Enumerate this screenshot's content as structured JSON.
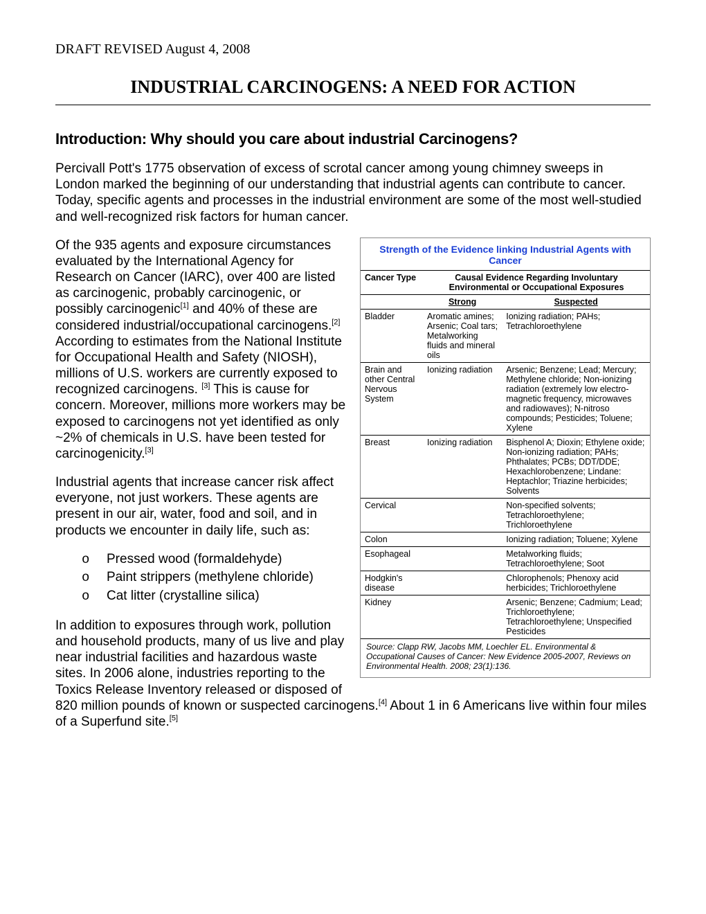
{
  "header": {
    "draft_line": "DRAFT REVISED August 4, 2008",
    "main_title": "INDUSTRIAL CARCINOGENS: A NEED FOR ACTION"
  },
  "section": {
    "heading": "Introduction: Why should you care about industrial Carcinogens?"
  },
  "paragraphs": {
    "intro": "Percivall Pott's 1775 observation of excess of scrotal cancer among young chimney sweeps in London marked the beginning of our understanding that industrial agents can contribute to cancer. Today, specific agents and processes in the industrial environment are some of the most well-studied and well-recognized risk factors for human cancer.",
    "p2a": "Of the 935 agents and exposure circumstances evaluated by the International Agency for Research on Cancer (IARC), over 400 are listed as carcinogenic, probably carcinogenic, or possibly carcinogenic",
    "p2a_ref": "[1]",
    "p2b": " and 40% of these are considered industrial/occupational carcinogens.",
    "p2b_ref": "[2]",
    "p2c": " According to estimates from the National Institute for Occupational Health and Safety (NIOSH), millions of U.S. workers are currently exposed to recognized carcinogens. ",
    "p2c_ref": "[3]",
    "p2d": "  This is cause for concern.  Moreover, millions more workers may be exposed to carcinogens not yet identified as only ~2% of chemicals in U.S. have been tested for carcinogenicity.",
    "p2d_ref": "[3]",
    "p3": "Industrial agents that increase cancer risk affect everyone, not just workers. These agents are present in our air, water, food and soil, and in products we encounter in daily life, such as:",
    "p4a": "In addition to exposures through work, pollution and household products, many of us live and play near industrial facilities and hazardous waste sites. In 2006 alone, industries reporting to the Toxics Release Inventory released or disposed of 820 million pounds of known or suspected carcinogens.",
    "p4a_ref": "[4]",
    "p4b": " About 1 in 6 Americans live within four miles of a Superfund site.",
    "p4b_ref": "[5]"
  },
  "bullets": [
    "Pressed wood (formaldehyde)",
    "Paint strippers (methylene chloride)",
    "Cat litter (crystalline silica)"
  ],
  "sidebar": {
    "title": "Strength of the Evidence linking Industrial Agents with Cancer",
    "col_cancer_type": "Cancer Type",
    "col_causal": "Causal Evidence Regarding Involuntary Environmental or Occupational Exposures",
    "col_strong": "Strong",
    "col_suspected": "Suspected",
    "rows": [
      {
        "type": "Bladder",
        "strong": "Aromatic amines; Arsenic; Coal tars; Metalworking fluids and mineral oils",
        "suspected": "Ionizing radiation; PAHs; Tetrachloroethylene"
      },
      {
        "type": "Brain and other Central Nervous System",
        "strong": "Ionizing radiation",
        "suspected": "Arsenic; Benzene; Lead; Mercury; Methylene chloride; Non-ionizing radiation (extremely low electro-magnetic frequency, microwaves and radiowaves); N-nitroso compounds; Pesticides; Toluene; Xylene"
      },
      {
        "type": "Breast",
        "strong": "Ionizing radiation",
        "suspected": "Bisphenol A; Dioxin; Ethylene oxide; Non-ionizing radiation; PAHs; Phthalates; PCBs; DDT/DDE; Hexachlorobenzene; Lindane: Heptachlor; Triazine herbicides; Solvents"
      },
      {
        "type": "Cervical",
        "strong": "",
        "suspected": "Non-specified solvents; Tetrachloroethylene; Trichloroethylene"
      },
      {
        "type": "Colon",
        "strong": "",
        "suspected": "Ionizing radiation; Toluene; Xylene"
      },
      {
        "type": "Esophageal",
        "strong": "",
        "suspected": "Metalworking fluids; Tetrachloroethylene; Soot"
      },
      {
        "type": "Hodgkin's disease",
        "strong": "",
        "suspected": "Chlorophenols; Phenoxy acid herbicides; Trichloroethylene"
      },
      {
        "type": "Kidney",
        "strong": "",
        "suspected": "Arsenic; Benzene; Cadmium; Lead; Trichloroethylene; Tetrachloroethylene; Unspecified Pesticides"
      }
    ],
    "source": "Source: Clapp RW, Jacobs MM, Loechler EL. Environmental & Occupational Causes of Cancer: New Evidence 2005-2007, Reviews on Environmental Health. 2008; 23(1):136."
  },
  "styles": {
    "title_color": "#1a3fd6",
    "border_color": "#888888",
    "text_color": "#000000",
    "background": "#ffffff"
  }
}
